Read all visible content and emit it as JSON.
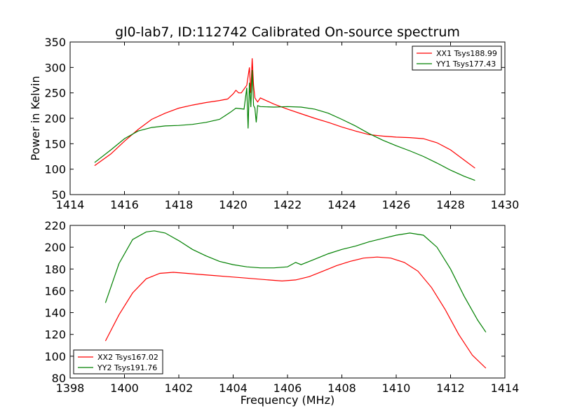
{
  "title": "gl0-lab7, ID:112742 Calibrated On-source spectrum",
  "chart_data": [
    {
      "type": "line",
      "title": "gl0-lab7, ID:112742 Calibrated On-source spectrum",
      "xlabel": "",
      "ylabel": "Power in Kelvin",
      "xlim": [
        1414,
        1430
      ],
      "ylim": [
        50,
        350
      ],
      "xticks": [
        1414,
        1416,
        1418,
        1420,
        1422,
        1424,
        1426,
        1428,
        1430
      ],
      "yticks": [
        50,
        100,
        150,
        200,
        250,
        300,
        350
      ],
      "legend_position": "top-right",
      "series": [
        {
          "name": "XX1 Tsys188.99",
          "color": "#ff0000",
          "x": [
            1414.9,
            1415.5,
            1416.0,
            1416.5,
            1417.0,
            1417.5,
            1418.0,
            1418.5,
            1419.0,
            1419.5,
            1419.8,
            1420.0,
            1420.1,
            1420.2,
            1420.3,
            1420.5,
            1420.6,
            1420.65,
            1420.7,
            1420.75,
            1420.8,
            1420.9,
            1421.0,
            1421.5,
            1422.0,
            1422.5,
            1423.0,
            1423.5,
            1424.0,
            1424.5,
            1425.0,
            1425.5,
            1426.0,
            1426.5,
            1427.0,
            1427.5,
            1428.0,
            1428.5,
            1428.9
          ],
          "y": [
            107,
            130,
            155,
            178,
            198,
            210,
            220,
            226,
            231,
            235,
            238,
            248,
            255,
            250,
            250,
            265,
            300,
            250,
            318,
            265,
            240,
            232,
            240,
            228,
            218,
            209,
            200,
            192,
            183,
            175,
            168,
            165,
            163,
            162,
            160,
            152,
            138,
            118,
            102
          ]
        },
        {
          "name": "YY1 Tsys177.43",
          "color": "#008000",
          "x": [
            1414.9,
            1415.5,
            1416.0,
            1416.5,
            1417.0,
            1417.5,
            1418.0,
            1418.5,
            1419.0,
            1419.5,
            1419.7,
            1419.9,
            1420.1,
            1420.4,
            1420.5,
            1420.55,
            1420.6,
            1420.65,
            1420.7,
            1420.75,
            1420.8,
            1420.85,
            1420.9,
            1421.0,
            1421.5,
            1422.0,
            1422.5,
            1423.0,
            1423.5,
            1424.0,
            1424.5,
            1425.0,
            1425.5,
            1426.0,
            1426.5,
            1427.0,
            1427.5,
            1428.0,
            1428.5,
            1428.9
          ],
          "y": [
            113,
            138,
            160,
            175,
            182,
            185,
            186,
            188,
            192,
            198,
            205,
            212,
            220,
            218,
            260,
            180,
            270,
            222,
            295,
            225,
            220,
            192,
            225,
            223,
            222,
            223,
            222,
            218,
            210,
            198,
            185,
            170,
            157,
            146,
            136,
            125,
            112,
            98,
            86,
            78
          ]
        }
      ]
    },
    {
      "type": "line",
      "title": "",
      "xlabel": "Frequency (MHz)",
      "ylabel": "",
      "xlim": [
        1398,
        1414
      ],
      "ylim": [
        80,
        220
      ],
      "xticks": [
        1398,
        1400,
        1402,
        1404,
        1406,
        1408,
        1410,
        1412,
        1414
      ],
      "yticks": [
        80,
        100,
        120,
        140,
        160,
        180,
        200,
        220
      ],
      "legend_position": "bottom-left",
      "series": [
        {
          "name": "XX2 Tsys167.02",
          "color": "#ff0000",
          "x": [
            1399.3,
            1399.8,
            1400.3,
            1400.8,
            1401.3,
            1401.8,
            1402.3,
            1402.8,
            1403.3,
            1403.8,
            1404.3,
            1404.8,
            1405.3,
            1405.8,
            1406.3,
            1406.8,
            1407.3,
            1407.8,
            1408.3,
            1408.8,
            1409.3,
            1409.8,
            1410.3,
            1410.8,
            1411.3,
            1411.8,
            1412.3,
            1412.8,
            1413.3
          ],
          "y": [
            114,
            138,
            158,
            171,
            176,
            177,
            176,
            175,
            174,
            173,
            172,
            171,
            170,
            169,
            170,
            173,
            178,
            183,
            187,
            190,
            191,
            190,
            186,
            178,
            163,
            143,
            120,
            101,
            89
          ]
        },
        {
          "name": "YY2 Tsys191.76",
          "color": "#008000",
          "x": [
            1399.3,
            1399.8,
            1400.3,
            1400.8,
            1401.1,
            1401.5,
            1402.0,
            1402.5,
            1403.0,
            1403.5,
            1404.0,
            1404.5,
            1405.0,
            1405.5,
            1406.0,
            1406.3,
            1406.5,
            1407.0,
            1407.5,
            1408.0,
            1408.5,
            1409.0,
            1409.5,
            1410.0,
            1410.5,
            1411.0,
            1411.5,
            1412.0,
            1412.5,
            1413.0,
            1413.3
          ],
          "y": [
            149,
            185,
            207,
            214,
            215,
            213,
            206,
            198,
            192,
            187,
            184,
            182,
            181,
            181,
            182,
            186,
            184,
            189,
            194,
            198,
            201,
            205,
            208,
            211,
            213,
            211,
            200,
            180,
            155,
            133,
            122
          ]
        }
      ]
    }
  ]
}
